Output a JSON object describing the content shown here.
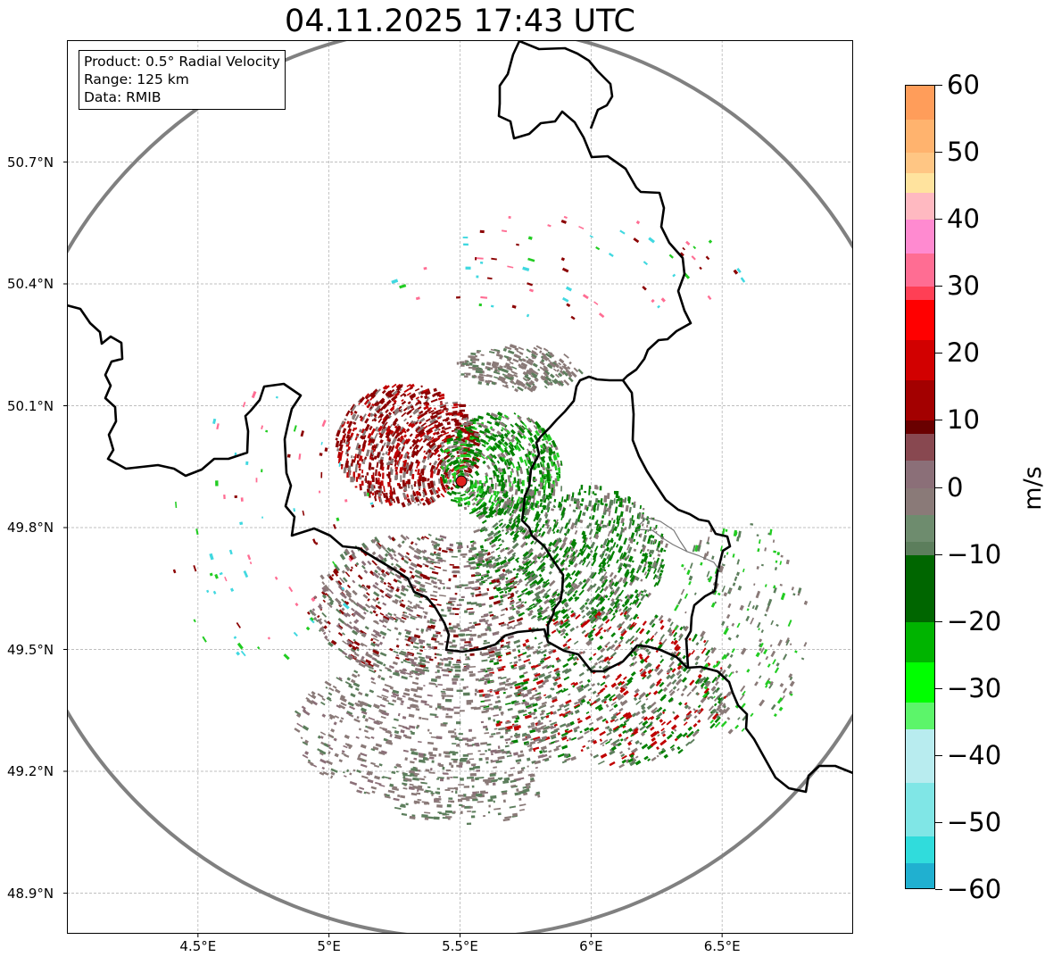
{
  "title": "04.11.2025 17:43 UTC",
  "info": {
    "product": "Product: 0.5° Radial Velocity",
    "range": "Range: 125 km",
    "data": "Data: RMIB"
  },
  "map": {
    "lon_range": [
      4.0,
      7.0
    ],
    "lat_range": [
      48.8,
      51.0
    ],
    "lat_ticks": [
      "50.7°N",
      "50.4°N",
      "50.1°N",
      "49.8°N",
      "49.5°N",
      "49.2°N",
      "48.9°N"
    ],
    "lat_values": [
      50.7,
      50.4,
      50.1,
      49.8,
      49.5,
      49.2,
      48.9
    ],
    "lon_ticks": [
      "4.5°E",
      "5°E",
      "5.5°E",
      "6°E",
      "6.5°E"
    ],
    "lon_values": [
      4.5,
      5.0,
      5.5,
      6.0,
      6.5
    ],
    "radar_site": {
      "lon": 5.505,
      "lat": 49.914
    },
    "range_ring_km": 125,
    "border_color": "#000000",
    "ring_color": "#808080",
    "radar_marker_color": "#e0211e"
  },
  "colorbar": {
    "unit": "m/s",
    "min": -60,
    "max": 60,
    "tick_labels": [
      "60",
      "50",
      "40",
      "30",
      "20",
      "10",
      "0",
      "−10",
      "−20",
      "−30",
      "−40",
      "−50",
      "−60"
    ],
    "tick_values": [
      60,
      50,
      40,
      30,
      20,
      10,
      0,
      -10,
      -20,
      -30,
      -40,
      -50,
      -60
    ],
    "stops": [
      {
        "v": 60,
        "color": "#ff9d5a"
      },
      {
        "v": 55,
        "color": "#ffb36e"
      },
      {
        "v": 50,
        "color": "#ffc684"
      },
      {
        "v": 47,
        "color": "#ffe39e"
      },
      {
        "v": 44,
        "color": "#ffb9c1"
      },
      {
        "v": 40,
        "color": "#ff8ad0"
      },
      {
        "v": 35,
        "color": "#ff6d93"
      },
      {
        "v": 30,
        "color": "#ff3f55"
      },
      {
        "v": 28,
        "color": "#ff0000"
      },
      {
        "v": 22,
        "color": "#d20000"
      },
      {
        "v": 16,
        "color": "#a30000"
      },
      {
        "v": 10,
        "color": "#6a0000"
      },
      {
        "v": 8,
        "color": "#884850"
      },
      {
        "v": 4,
        "color": "#8b6f78"
      },
      {
        "v": 0,
        "color": "#8a7a78"
      },
      {
        "v": -4,
        "color": "#6e8c6e"
      },
      {
        "v": -8,
        "color": "#5c7e5c"
      },
      {
        "v": -10,
        "color": "#006600"
      },
      {
        "v": -20,
        "color": "#00b400"
      },
      {
        "v": -26,
        "color": "#00ff00"
      },
      {
        "v": -32,
        "color": "#5cf56a"
      },
      {
        "v": -36,
        "color": "#b8ecef"
      },
      {
        "v": -44,
        "color": "#80e6e6"
      },
      {
        "v": -52,
        "color": "#30dcdc"
      },
      {
        "v": -56,
        "color": "#20b0d0"
      },
      {
        "v": -60,
        "color": "#1f78c8"
      }
    ]
  },
  "echo_palette": {
    "outbound_dark": "#8b0000",
    "outbound_red": "#c00000",
    "zero_grey": "#8a7a78",
    "near_zero_green": "#5c7e5c",
    "inbound_green": "#008000",
    "inbound_bright": "#22cc22",
    "aliased_pink": "#ff6d93",
    "aliased_cyan": "#40d8e0"
  }
}
